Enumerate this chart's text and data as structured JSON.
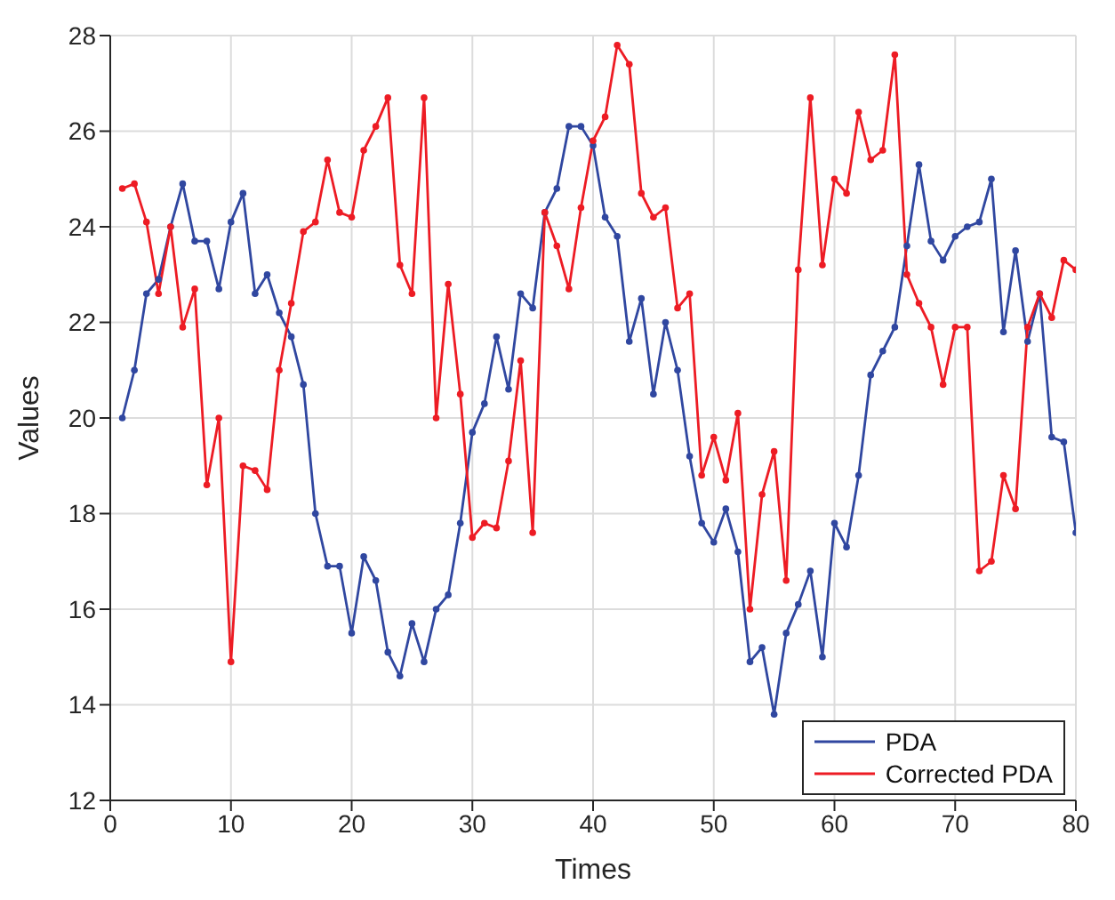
{
  "chart_data": {
    "type": "line",
    "xlabel": "Times",
    "ylabel": "Values",
    "x": [
      1,
      2,
      3,
      4,
      5,
      6,
      7,
      8,
      9,
      10,
      11,
      12,
      13,
      14,
      15,
      16,
      17,
      18,
      19,
      20,
      21,
      22,
      23,
      24,
      25,
      26,
      27,
      28,
      29,
      30,
      31,
      32,
      33,
      34,
      35,
      36,
      37,
      38,
      39,
      40,
      41,
      42,
      43,
      44,
      45,
      46,
      47,
      48,
      49,
      50,
      51,
      52,
      53,
      54,
      55,
      56,
      57,
      58,
      59,
      60,
      61,
      62,
      63,
      64,
      65,
      66,
      67,
      68,
      69,
      70,
      71,
      72,
      73,
      74,
      75,
      76,
      77,
      78,
      79,
      80
    ],
    "series": [
      {
        "name": "PDA",
        "color": "#3047a0",
        "values": [
          20.0,
          21.0,
          22.6,
          22.9,
          24.0,
          24.9,
          23.7,
          23.7,
          22.7,
          24.1,
          24.7,
          22.6,
          23.0,
          22.2,
          21.7,
          20.7,
          18.0,
          16.9,
          16.9,
          15.5,
          17.1,
          16.6,
          15.1,
          14.6,
          15.7,
          14.9,
          16.0,
          16.3,
          17.8,
          19.7,
          20.3,
          21.7,
          20.6,
          22.6,
          22.3,
          24.3,
          24.8,
          26.1,
          26.1,
          25.7,
          24.2,
          23.8,
          21.6,
          22.5,
          20.5,
          22.0,
          21.0,
          19.2,
          17.8,
          17.4,
          18.1,
          17.2,
          14.9,
          15.2,
          13.8,
          15.5,
          16.1,
          16.8,
          15.0,
          17.8,
          17.3,
          18.8,
          20.9,
          21.4,
          21.9,
          23.6,
          25.3,
          23.7,
          23.3,
          23.8,
          24.0,
          24.1,
          25.0,
          21.8,
          23.5,
          21.6,
          22.6,
          19.6,
          19.5,
          17.6
        ]
      },
      {
        "name": "Corrected PDA",
        "color": "#ed1c24",
        "values": [
          24.8,
          24.9,
          24.1,
          22.6,
          24.0,
          21.9,
          22.7,
          18.6,
          20.0,
          14.9,
          19.0,
          18.9,
          18.5,
          21.0,
          22.4,
          23.9,
          24.1,
          25.4,
          24.3,
          24.2,
          25.6,
          26.1,
          26.7,
          23.2,
          22.6,
          26.7,
          20.0,
          22.8,
          20.5,
          17.5,
          17.8,
          17.7,
          19.1,
          21.2,
          17.6,
          24.3,
          23.6,
          22.7,
          24.4,
          25.8,
          26.3,
          27.8,
          27.4,
          24.7,
          24.2,
          24.4,
          22.3,
          22.6,
          18.8,
          19.6,
          18.7,
          20.1,
          16.0,
          18.4,
          19.3,
          16.6,
          23.1,
          26.7,
          23.2,
          25.0,
          24.7,
          26.4,
          25.4,
          25.6,
          27.6,
          23.0,
          22.4,
          21.9,
          20.7,
          21.9,
          21.9,
          16.8,
          17.0,
          18.8,
          18.1,
          21.9,
          22.6,
          22.1,
          23.3,
          23.1
        ]
      }
    ],
    "xlim": [
      0,
      80
    ],
    "xticks": [
      0,
      10,
      20,
      30,
      40,
      50,
      60,
      70,
      80
    ],
    "ylim": [
      12,
      28
    ],
    "yticks": [
      12,
      14,
      16,
      18,
      20,
      22,
      24,
      26,
      28
    ],
    "grid": true,
    "legend": "bottom right",
    "marker": "circle",
    "line_style": "solid"
  }
}
